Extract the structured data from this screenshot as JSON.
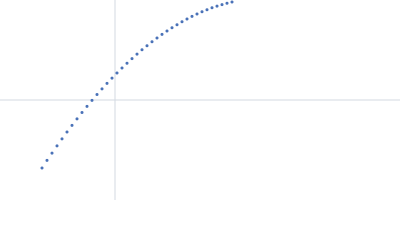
{
  "chart_data": {
    "type": "scatter",
    "color": "#4a72b8",
    "xlim": [
      -1.15,
      2.85
    ],
    "ylim": [
      -1,
      1
    ],
    "zero_lines": true,
    "x": [
      -0.73,
      -0.68,
      -0.63,
      -0.58,
      -0.53,
      -0.48,
      -0.43,
      -0.38,
      -0.33,
      -0.28,
      -0.23,
      -0.18,
      -0.13,
      -0.08,
      -0.03,
      0.02,
      0.07,
      0.12,
      0.17,
      0.22,
      0.27,
      0.32,
      0.37,
      0.42,
      0.47,
      0.52,
      0.57,
      0.62,
      0.67,
      0.72,
      0.77,
      0.82,
      0.87,
      0.92,
      0.97,
      1.02,
      1.07,
      1.12,
      1.17
    ],
    "values": [
      -0.68,
      -0.604,
      -0.531,
      -0.459,
      -0.389,
      -0.32,
      -0.254,
      -0.189,
      -0.125,
      -0.064,
      -0.004,
      0.055,
      0.111,
      0.166,
      0.219,
      0.27,
      0.32,
      0.368,
      0.414,
      0.459,
      0.502,
      0.543,
      0.582,
      0.62,
      0.656,
      0.69,
      0.723,
      0.753,
      0.783,
      0.81,
      0.836,
      0.86,
      0.882,
      0.903,
      0.922,
      0.939,
      0.954,
      0.968,
      0.98
    ]
  }
}
